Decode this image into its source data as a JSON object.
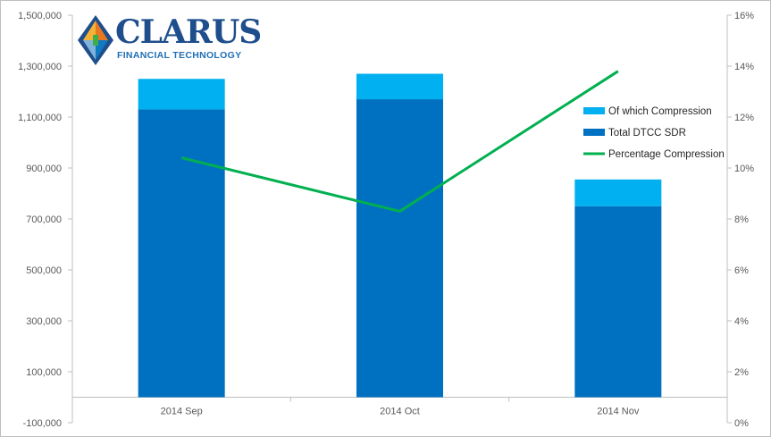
{
  "logo": {
    "name": "CLARUS",
    "tagline": "FINANCIAL TECHNOLOGY"
  },
  "chart_data": {
    "type": "bar",
    "categories": [
      "2014 Sep",
      "2014 Oct",
      "2014 Nov"
    ],
    "series": [
      {
        "name": "Total DTCC SDR",
        "kind": "stacked-bar",
        "axis": "left",
        "color": "#0070c0",
        "values": [
          1130000,
          1170000,
          750000
        ]
      },
      {
        "name": "Of which Compression",
        "kind": "stacked-bar",
        "axis": "left",
        "color": "#00b0f0",
        "values": [
          120000,
          100000,
          105000
        ]
      },
      {
        "name": "Percentage Compression",
        "kind": "line",
        "axis": "right",
        "color": "#00b050",
        "values": [
          0.104,
          0.083,
          0.138
        ]
      }
    ],
    "legend": [
      "Of which Compression",
      "Total DTCC SDR",
      "Percentage Compression"
    ],
    "legend_position": "right",
    "y_left": {
      "min": -100000,
      "max": 1500000,
      "ticks": [
        -100000,
        100000,
        300000,
        500000,
        700000,
        900000,
        1100000,
        1300000,
        1500000
      ],
      "tick_labels": [
        "-100,000",
        "100,000",
        "300,000",
        "500,000",
        "700,000",
        "900,000",
        "1,100,000",
        "1,300,000",
        "1,500,000"
      ]
    },
    "y_right": {
      "min": 0,
      "max": 0.16,
      "ticks": [
        0,
        0.02,
        0.04,
        0.06,
        0.08,
        0.1,
        0.12,
        0.14,
        0.16
      ],
      "tick_labels": [
        "0%",
        "2%",
        "4%",
        "6%",
        "8%",
        "10%",
        "12%",
        "14%",
        "16%"
      ]
    },
    "grid": false
  }
}
